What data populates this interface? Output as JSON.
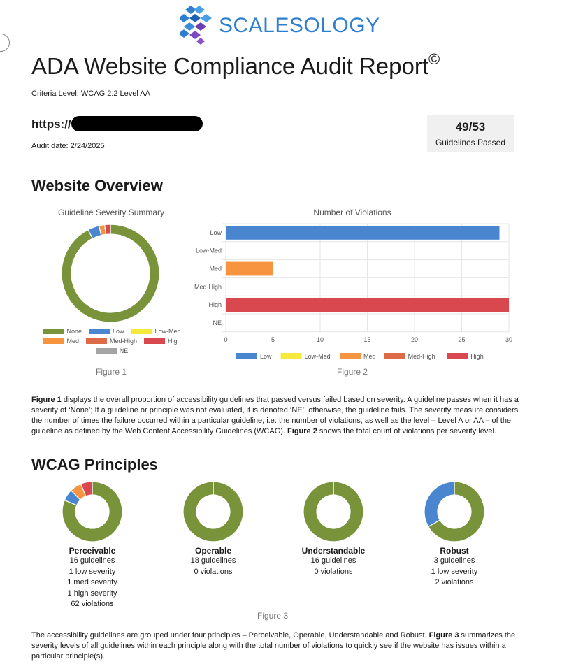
{
  "brand": {
    "name": "SCALESOLOGY",
    "logo_icon": "scalesology-logo-icon",
    "color": "#2f7fd1"
  },
  "report": {
    "title": "ADA Website Compliance Audit Report",
    "title_mark": "©",
    "criteria": "Criteria Level: WCAG 2.2 Level AA",
    "url_prefix": "https://",
    "audit_date": "Audit date: 2/24/2025",
    "passed": {
      "value": "49/53",
      "label": "Guidelines Passed"
    }
  },
  "overview": {
    "heading": "Website Overview",
    "figure1_caption": "Figure 1",
    "figure2_caption": "Figure 2",
    "paragraph": {
      "fig1_ref": "Figure 1",
      "part1": " displays the overall proportion of accessibility guidelines that passed versus failed based on severity. A guideline passes when it has a severity of ‘None’; If a guideline or principle was not evaluated, it is denoted ‘NE’. otherwise, the guideline fails. The severity measure considers the number of times the failure occurred within a particular guideline, i.e. the number of violations, as well as the level – Level A or AA – of the guideline as defined by the Web Content Accessibility Guidelines (WCAG). ",
      "fig2_ref": "Figure 2",
      "part2": " shows the total count of violations per severity level."
    }
  },
  "colors": {
    "None": "#78933a",
    "Low": "#4a86cf",
    "Low-Med": "#f5e93b",
    "Med": "#f7943f",
    "Med-High": "#de6b48",
    "High": "#d9474f",
    "NE": "#a4a4a4"
  },
  "chart_data": [
    {
      "type": "pie",
      "title": "Guideline Severity Summary",
      "categories": [
        "None",
        "Low",
        "Low-Med",
        "Med",
        "Med-High",
        "High",
        "NE"
      ],
      "values": [
        49,
        2,
        0,
        1,
        0,
        1,
        0
      ],
      "legend": "bottom"
    },
    {
      "type": "bar",
      "orientation": "horizontal",
      "title": "Number of Violations",
      "categories": [
        "Low",
        "Low-Med",
        "Med",
        "Med-High",
        "High",
        "NE"
      ],
      "values": [
        29,
        0,
        5,
        0,
        30,
        0
      ],
      "xlim": [
        0,
        30
      ],
      "xticks": [
        0,
        5,
        10,
        15,
        20,
        25,
        30
      ],
      "legend_labels": [
        "Low",
        "Low-Med",
        "Med",
        "Med-High",
        "High"
      ],
      "legend": "bottom"
    },
    {
      "type": "pie",
      "title": "WCAG Principles",
      "principles": [
        {
          "name": "Perceivable",
          "values": [
            13,
            1,
            0,
            1,
            0,
            1,
            0
          ],
          "lines": [
            "16 guidelines",
            "1 low severity",
            "1 med severity",
            "1 high severity",
            "62 violations"
          ]
        },
        {
          "name": "Operable",
          "values": [
            18,
            0,
            0,
            0,
            0,
            0,
            0
          ],
          "lines": [
            "18 guidelines",
            "0 violations"
          ]
        },
        {
          "name": "Understandable",
          "values": [
            16,
            0,
            0,
            0,
            0,
            0,
            0
          ],
          "lines": [
            "16 guidelines",
            "0 violations"
          ]
        },
        {
          "name": "Robust",
          "values": [
            2,
            1,
            0,
            0,
            0,
            0,
            0
          ],
          "lines": [
            "3 guidelines",
            "1 low severity",
            "2 violations"
          ]
        }
      ]
    }
  ],
  "principles_section": {
    "heading": "WCAG Principles",
    "figure3_caption": "Figure 3",
    "paragraph": {
      "part1": "The accessibility guidelines are grouped under four principles – Perceivable, Operable, Understandable and Robust. ",
      "fig3_ref": "Figure 3",
      "part2": " summarizes the severity levels of all guidelines within each principle along with the total number of violations to quickly see if the website has issues within a particular principle(s)."
    }
  }
}
